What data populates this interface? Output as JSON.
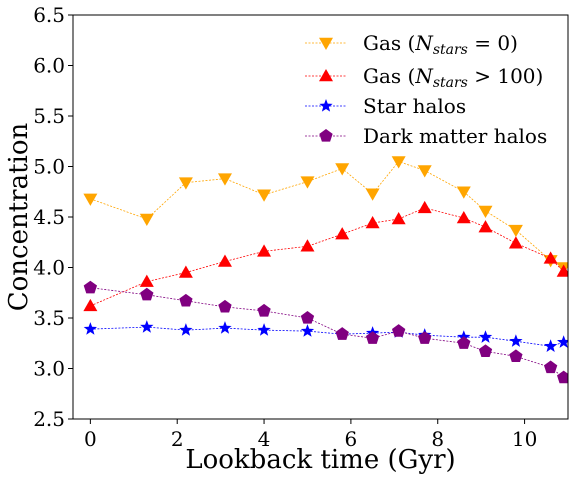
{
  "chart_data": {
    "type": "line",
    "xlabel": "Lookback time (Gyr)",
    "ylabel": "Concentration",
    "xlim": [
      -0.4,
      11.0
    ],
    "ylim": [
      2.5,
      6.5
    ],
    "xticks": [
      0,
      2,
      4,
      6,
      8,
      10
    ],
    "yticks": [
      2.5,
      3.0,
      3.5,
      4.0,
      4.5,
      5.0,
      5.5,
      6.0,
      6.5
    ],
    "xtick_labels": [
      "0",
      "2",
      "4",
      "6",
      "8",
      "10"
    ],
    "ytick_labels": [
      "2.5",
      "3.0",
      "3.5",
      "4.0",
      "4.5",
      "5.0",
      "5.5",
      "6.0",
      "6.5"
    ],
    "grid": false,
    "legend_position": "top-right",
    "x": [
      0,
      1.3,
      2.2,
      3.1,
      4.0,
      5.0,
      5.8,
      6.5,
      7.1,
      7.7,
      8.6,
      9.1,
      9.8,
      10.6,
      10.9
    ],
    "series": [
      {
        "name": "Gas (N_stars = 0)",
        "legend_prefix": "Gas (",
        "legend_math": "N",
        "legend_sub": "stars",
        "legend_suffix": " = 0)",
        "color": "#ffa500",
        "marker": "triangle-down",
        "values": [
          4.68,
          4.48,
          4.84,
          4.88,
          4.72,
          4.85,
          4.98,
          4.73,
          5.05,
          4.96,
          4.75,
          4.56,
          4.37,
          4.07,
          4.0
        ]
      },
      {
        "name": "Gas (N_stars > 100)",
        "legend_prefix": "Gas (",
        "legend_math": "N",
        "legend_sub": "stars",
        "legend_suffix": " > 100)",
        "color": "#ff0000",
        "marker": "triangle-up",
        "values": [
          3.62,
          3.86,
          3.95,
          4.06,
          4.16,
          4.21,
          4.33,
          4.44,
          4.48,
          4.59,
          4.49,
          4.4,
          4.24,
          4.09,
          3.96
        ]
      },
      {
        "name": "Star halos",
        "legend_label": "Star halos",
        "color": "#0000ff",
        "marker": "star",
        "values": [
          3.39,
          3.41,
          3.38,
          3.4,
          3.38,
          3.37,
          3.34,
          3.35,
          3.36,
          3.33,
          3.31,
          3.31,
          3.27,
          3.22,
          3.26
        ]
      },
      {
        "name": "Dark matter halos",
        "legend_label": "Dark matter halos",
        "color": "#800080",
        "marker": "pentagon",
        "values": [
          3.8,
          3.73,
          3.67,
          3.61,
          3.57,
          3.5,
          3.34,
          3.3,
          3.37,
          3.3,
          3.25,
          3.17,
          3.12,
          3.01,
          2.91
        ]
      }
    ]
  }
}
